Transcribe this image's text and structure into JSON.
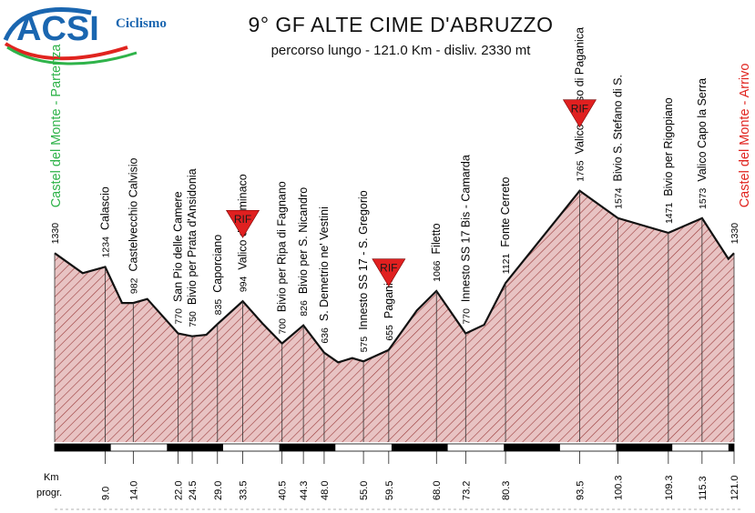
{
  "logo": {
    "text": "ACSI",
    "tagline": "Ciclismo"
  },
  "header": {
    "title": "9° GF ALTE CIME D'ABRUZZO",
    "subtitle": "percorso lungo - 121.0 Km - disliv. 2330 mt"
  },
  "colors": {
    "fill": "#e8c3c3",
    "hatch": "#9b3b3b",
    "start": "#2fb34a",
    "finish": "#e0241f",
    "rif": "#e02020"
  },
  "chart_data": {
    "type": "area",
    "km_label": "Km",
    "progr_label": "progr.",
    "points": [
      {
        "km": 0.0,
        "alt": 1330
      },
      {
        "km": 5.0,
        "alt": 1190
      },
      {
        "km": 9.0,
        "alt": 1234,
        "label": "Calascio"
      },
      {
        "km": 12.0,
        "alt": 982
      },
      {
        "km": 14.0,
        "alt": 982,
        "label": "Castelvecchio Calvisio"
      },
      {
        "km": 16.5,
        "alt": 1010
      },
      {
        "km": 22.0,
        "alt": 770,
        "label": "San Pio delle Camere"
      },
      {
        "km": 24.5,
        "alt": 750,
        "label": "Bivio per Prata d'Ansidonia"
      },
      {
        "km": 27.0,
        "alt": 760
      },
      {
        "km": 29.0,
        "alt": 835,
        "label": "Caporciano"
      },
      {
        "km": 33.5,
        "alt": 994,
        "label": "Valico di Bominaco"
      },
      {
        "km": 37.0,
        "alt": 840
      },
      {
        "km": 40.5,
        "alt": 700,
        "label": "Bivio per Ripa di Fagnano"
      },
      {
        "km": 44.3,
        "alt": 826,
        "label": "Bivio per S. Nicandro"
      },
      {
        "km": 48.0,
        "alt": 636,
        "label": "S. Demetrio ne' Vestini"
      },
      {
        "km": 50.5,
        "alt": 568
      },
      {
        "km": 53.0,
        "alt": 598
      },
      {
        "km": 55.0,
        "alt": 575,
        "label": "Innesto SS 17 - S. Gregorio"
      },
      {
        "km": 59.5,
        "alt": 655,
        "label": "Paganica"
      },
      {
        "km": 64.5,
        "alt": 930
      },
      {
        "km": 68.0,
        "alt": 1066,
        "label": "Filetto"
      },
      {
        "km": 73.2,
        "alt": 770,
        "label": "Innesto SS 17 Bis - Camarda"
      },
      {
        "km": 76.5,
        "alt": 830
      },
      {
        "km": 80.3,
        "alt": 1121,
        "label": "Fonte Cerreto"
      },
      {
        "km": 93.5,
        "alt": 1765,
        "label": "Valico Fosso di Paganica"
      },
      {
        "km": 100.3,
        "alt": 1574,
        "label": "Bivio S. Stefano di S."
      },
      {
        "km": 109.3,
        "alt": 1471,
        "label": "Bivio per Rigopiano"
      },
      {
        "km": 115.3,
        "alt": 1573,
        "label": "Valico Capo la Serra"
      },
      {
        "km": 120.0,
        "alt": 1290
      },
      {
        "km": 121.0,
        "alt": 1330
      }
    ],
    "start": {
      "km": 0.0,
      "alt": 1330,
      "label": "Castel del Monte - Partenza"
    },
    "finish": {
      "km": 121.0,
      "alt": 1330,
      "label": "Castel del Monte - Arrivo"
    },
    "km_ticks": [
      9.0,
      14.0,
      22.0,
      24.5,
      29.0,
      33.5,
      40.5,
      44.3,
      48.0,
      55.0,
      59.5,
      68.0,
      73.2,
      80.3,
      93.5,
      100.3,
      109.3,
      115.3,
      121.0
    ],
    "rif_stops": [
      {
        "km": 33.5,
        "label": "RIF"
      },
      {
        "km": 59.5,
        "label": "RIF"
      },
      {
        "km": 93.5,
        "label": "RIF"
      }
    ],
    "scale_bar_km": 10
  }
}
